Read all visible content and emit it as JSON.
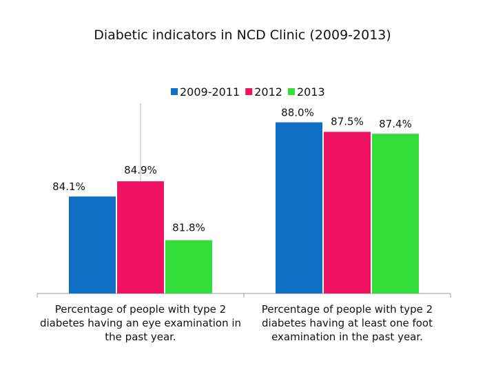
{
  "chart_data": {
    "type": "bar",
    "title": "Diabetic indicators in NCD Clinic (2009-2013)",
    "categories": [
      [
        "Percentage of people with type 2",
        "diabetes having an eye examination in",
        "the past year."
      ],
      [
        "Percentage of people with type 2",
        "diabetes having at least one foot",
        "examination in  the past year."
      ]
    ],
    "series": [
      {
        "name": "2009-2011",
        "color": "#0e6fc4",
        "values": [
          84.1,
          88.0
        ],
        "labels": [
          "84.1%",
          "88.0%"
        ]
      },
      {
        "name": "2012",
        "color": "#ee1260",
        "values": [
          84.9,
          87.5
        ],
        "labels": [
          "84.9%",
          "87.5%"
        ]
      },
      {
        "name": "2013",
        "color": "#33dd3a",
        "values": [
          81.8,
          87.4
        ],
        "labels": [
          "81.8%",
          "87.4%"
        ]
      }
    ],
    "xlabel": "",
    "ylabel": "",
    "ylim": [
      79,
      89
    ],
    "grid": false,
    "legend": "top-center",
    "data_label_format": "percent"
  }
}
